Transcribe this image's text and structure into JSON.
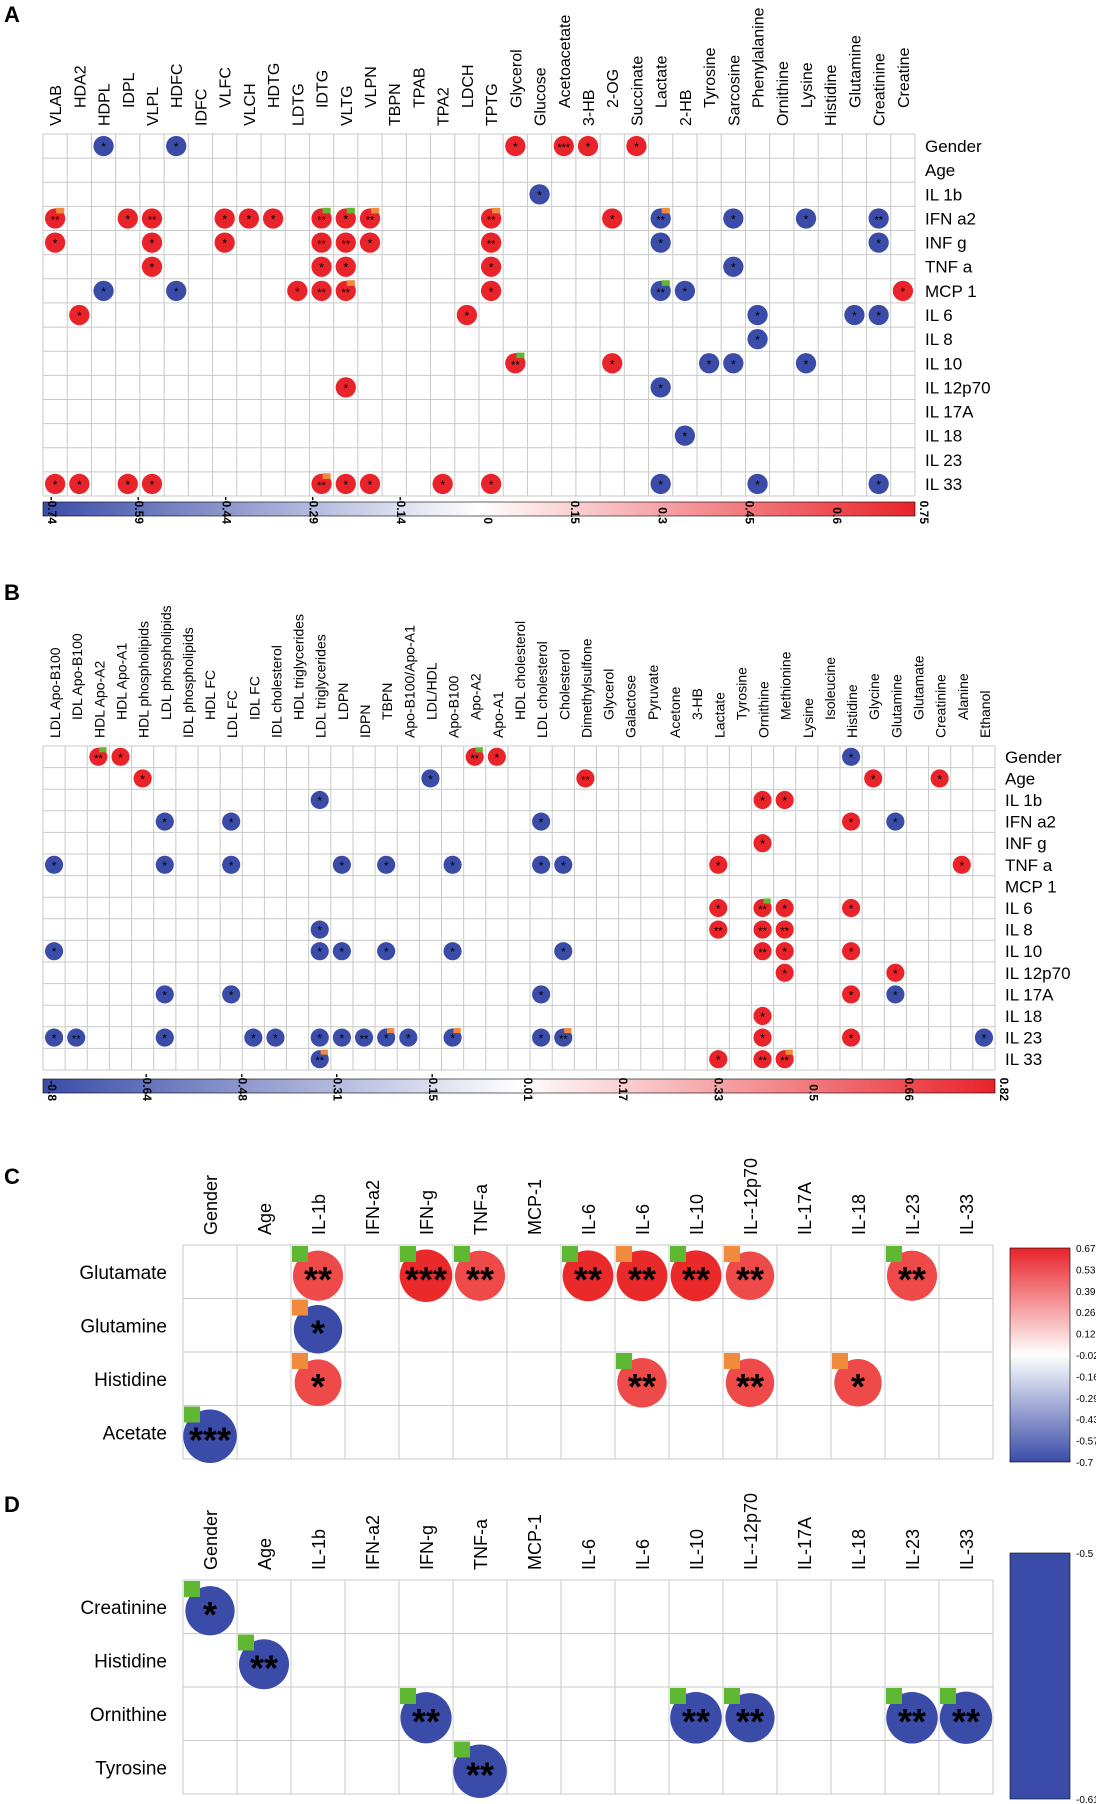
{
  "chart_data": [
    {
      "panel": "A",
      "type": "heatmap",
      "title": "A",
      "columns": [
        "VLAB",
        "HDA2",
        "HDPL",
        "IDPL",
        "VLPL",
        "HDFC",
        "IDFC",
        "VLFC",
        "VLCH",
        "HDTG",
        "LDTG",
        "IDTG",
        "VLTG",
        "VLPN",
        "TBPN",
        "TPAB",
        "TPA2",
        "LDCH",
        "TPTG",
        "Glycerol",
        "Glucose",
        "Acetoacetate",
        "3-HB",
        "2-OG",
        "Succinate",
        "Lactate",
        "2-HB",
        "Tyrosine",
        "Sarcosine",
        "Phenylalanine",
        "Ornithine",
        "Lysine",
        "Histidine",
        "Glutamine",
        "Creatinine",
        "Creatine"
      ],
      "rows": [
        "Gender",
        "Age",
        "IL 1b",
        "IFN a2",
        "INF g",
        "TNF a",
        "MCP 1",
        "IL 6",
        "IL 8",
        "IL 10",
        "IL 12p70",
        "IL 17A",
        "IL 18",
        "IL 23",
        "IL 33"
      ],
      "colorbar": {
        "min": -0.74,
        "max": 0.75,
        "ticks": [
          "-0.74",
          "-0.59",
          "-0.44",
          "-0.29",
          "-0.14",
          "0",
          "0.15",
          "0.3",
          "0.45",
          "0.6",
          "0.75"
        ]
      },
      "cells": [
        [
          0,
          2,
          -0.7,
          "*",
          ""
        ],
        [
          0,
          5,
          -0.7,
          "*",
          ""
        ],
        [
          0,
          19,
          0.7,
          "*",
          ""
        ],
        [
          0,
          21,
          0.7,
          "***",
          ""
        ],
        [
          0,
          22,
          0.7,
          "*",
          ""
        ],
        [
          0,
          24,
          0.7,
          "*",
          ""
        ],
        [
          2,
          20,
          -0.7,
          "*",
          ""
        ],
        [
          3,
          0,
          0.7,
          "**",
          "o"
        ],
        [
          3,
          3,
          0.7,
          "*",
          ""
        ],
        [
          3,
          4,
          0.7,
          "**",
          ""
        ],
        [
          3,
          7,
          0.7,
          "*",
          ""
        ],
        [
          3,
          8,
          0.7,
          "*",
          ""
        ],
        [
          3,
          9,
          0.7,
          "*",
          ""
        ],
        [
          3,
          11,
          0.7,
          "**",
          "g"
        ],
        [
          3,
          12,
          0.7,
          "*",
          "g"
        ],
        [
          3,
          13,
          0.7,
          "**",
          "o"
        ],
        [
          3,
          18,
          0.7,
          "**",
          "o"
        ],
        [
          3,
          23,
          0.7,
          "*",
          ""
        ],
        [
          3,
          25,
          -0.7,
          "**",
          "o"
        ],
        [
          3,
          28,
          -0.7,
          "*",
          ""
        ],
        [
          3,
          31,
          -0.7,
          "*",
          ""
        ],
        [
          3,
          34,
          -0.7,
          "**",
          ""
        ],
        [
          4,
          0,
          0.7,
          "*",
          ""
        ],
        [
          4,
          4,
          0.7,
          "*",
          ""
        ],
        [
          4,
          7,
          0.7,
          "*",
          ""
        ],
        [
          4,
          11,
          0.7,
          "**",
          ""
        ],
        [
          4,
          12,
          0.7,
          "**",
          ""
        ],
        [
          4,
          13,
          0.7,
          "*",
          ""
        ],
        [
          4,
          18,
          0.7,
          "**",
          ""
        ],
        [
          4,
          25,
          -0.7,
          "*",
          ""
        ],
        [
          4,
          34,
          -0.7,
          "*",
          ""
        ],
        [
          5,
          4,
          0.7,
          "*",
          ""
        ],
        [
          5,
          11,
          0.7,
          "*",
          ""
        ],
        [
          5,
          12,
          0.7,
          "*",
          ""
        ],
        [
          5,
          18,
          0.7,
          "*",
          ""
        ],
        [
          5,
          28,
          -0.7,
          "*",
          ""
        ],
        [
          6,
          2,
          -0.7,
          "*",
          ""
        ],
        [
          6,
          5,
          -0.7,
          "*",
          ""
        ],
        [
          6,
          10,
          0.7,
          "*",
          ""
        ],
        [
          6,
          11,
          0.7,
          "**",
          ""
        ],
        [
          6,
          12,
          0.7,
          "**",
          "o"
        ],
        [
          6,
          18,
          0.7,
          "*",
          ""
        ],
        [
          6,
          25,
          -0.7,
          "**",
          "g"
        ],
        [
          6,
          26,
          -0.7,
          "*",
          ""
        ],
        [
          6,
          35,
          0.7,
          "*",
          ""
        ],
        [
          7,
          1,
          0.7,
          "*",
          ""
        ],
        [
          7,
          17,
          0.7,
          "*",
          ""
        ],
        [
          7,
          29,
          -0.7,
          "*",
          ""
        ],
        [
          7,
          33,
          -0.7,
          "*",
          ""
        ],
        [
          7,
          34,
          -0.7,
          "*",
          ""
        ],
        [
          8,
          29,
          -0.7,
          "*",
          ""
        ],
        [
          9,
          19,
          0.7,
          "**",
          "g"
        ],
        [
          9,
          23,
          0.7,
          "*",
          ""
        ],
        [
          9,
          27,
          -0.7,
          "*",
          ""
        ],
        [
          9,
          28,
          -0.7,
          "*",
          ""
        ],
        [
          9,
          31,
          -0.7,
          "*",
          ""
        ],
        [
          10,
          12,
          0.7,
          "*",
          ""
        ],
        [
          10,
          25,
          -0.7,
          "*",
          ""
        ],
        [
          12,
          26,
          -0.7,
          "*",
          ""
        ],
        [
          14,
          0,
          0.7,
          "*",
          ""
        ],
        [
          14,
          1,
          0.7,
          "*",
          ""
        ],
        [
          14,
          3,
          0.7,
          "*",
          ""
        ],
        [
          14,
          4,
          0.7,
          "*",
          ""
        ],
        [
          14,
          11,
          0.7,
          "**",
          "o"
        ],
        [
          14,
          12,
          0.7,
          "*",
          ""
        ],
        [
          14,
          13,
          0.7,
          "*",
          ""
        ],
        [
          14,
          16,
          0.7,
          "*",
          ""
        ],
        [
          14,
          18,
          0.7,
          "*",
          ""
        ],
        [
          14,
          25,
          -0.7,
          "*",
          ""
        ],
        [
          14,
          29,
          -0.7,
          "*",
          ""
        ],
        [
          14,
          34,
          -0.7,
          "*",
          ""
        ]
      ]
    },
    {
      "panel": "B",
      "type": "heatmap",
      "title": "B",
      "columns": [
        "LDL Apo-B100",
        "IDL Apo-B100",
        "HDL Apo-A2",
        "HDL Apo-A1",
        "HDL phospholipids",
        "LDL phospholipids",
        "IDL phospholipids",
        "HDL FC",
        "LDL FC",
        "IDL FC",
        "IDL cholesterol",
        "HDL triglycerides",
        "LDL triglycerides",
        "LDPN",
        "IDPN",
        "TBPN",
        "Apo-B100/Apo-A1",
        "LDL/HDL",
        "Apo-B100",
        "Apo-A2",
        "Apo-A1",
        "HDL cholesterol",
        "LDL cholesterol",
        "Cholesterol",
        "Dimethylsulfone",
        "Glycerol",
        "Galactose",
        "Pyruvate",
        "Acetone",
        "3-HB",
        "Lactate",
        "Tyrosine",
        "Ornithine",
        "Methionine",
        "Lysine",
        "Isoleucine",
        "Histidine",
        "Glycine",
        "Glutamine",
        "Glutamate",
        "Creatinine",
        "Alanine",
        "Ethanol"
      ],
      "rows": [
        "Gender",
        "Age",
        "IL 1b",
        "IFN a2",
        "INF g",
        "TNF a",
        "MCP 1",
        "IL 6",
        "IL 8",
        "IL 10",
        "IL 12p70",
        "IL 17A",
        "IL 18",
        "IL 23",
        "IL 33"
      ],
      "colorbar": {
        "min": -0.8,
        "max": 0.82,
        "ticks": [
          "-0.8",
          "-0.64",
          "-0.48",
          "-0.31",
          "-0.15",
          "0.01",
          "0.17",
          "0.33",
          "0.5",
          "0.66",
          "0.82"
        ]
      },
      "cells": [
        [
          0,
          2,
          0.8,
          "**",
          "g"
        ],
        [
          0,
          3,
          0.8,
          "*",
          ""
        ],
        [
          0,
          19,
          0.8,
          "**",
          "g"
        ],
        [
          0,
          20,
          0.8,
          "*",
          ""
        ],
        [
          0,
          36,
          -0.8,
          "*",
          ""
        ],
        [
          1,
          4,
          0.8,
          "*",
          ""
        ],
        [
          1,
          17,
          -0.8,
          "*",
          ""
        ],
        [
          1,
          24,
          0.8,
          "**",
          ""
        ],
        [
          1,
          37,
          0.8,
          "*",
          ""
        ],
        [
          1,
          40,
          0.8,
          "*",
          ""
        ],
        [
          2,
          12,
          -0.8,
          "*",
          ""
        ],
        [
          2,
          32,
          0.8,
          "*",
          ""
        ],
        [
          2,
          33,
          0.8,
          "*",
          ""
        ],
        [
          3,
          5,
          -0.8,
          "*",
          ""
        ],
        [
          3,
          8,
          -0.8,
          "*",
          ""
        ],
        [
          3,
          22,
          -0.8,
          "*",
          ""
        ],
        [
          3,
          36,
          0.8,
          "*",
          ""
        ],
        [
          3,
          38,
          -0.8,
          "*",
          ""
        ],
        [
          4,
          32,
          0.8,
          "*",
          ""
        ],
        [
          5,
          0,
          -0.8,
          "*",
          ""
        ],
        [
          5,
          5,
          -0.8,
          "*",
          ""
        ],
        [
          5,
          8,
          -0.8,
          "*",
          ""
        ],
        [
          5,
          13,
          -0.8,
          "*",
          ""
        ],
        [
          5,
          15,
          -0.8,
          "*",
          ""
        ],
        [
          5,
          18,
          -0.8,
          "*",
          ""
        ],
        [
          5,
          22,
          -0.8,
          "*",
          ""
        ],
        [
          5,
          23,
          -0.8,
          "*",
          ""
        ],
        [
          5,
          30,
          0.8,
          "*",
          ""
        ],
        [
          5,
          41,
          0.8,
          "*",
          ""
        ],
        [
          7,
          30,
          0.8,
          "*",
          ""
        ],
        [
          7,
          32,
          0.8,
          "**",
          "g"
        ],
        [
          7,
          33,
          0.8,
          "*",
          ""
        ],
        [
          7,
          36,
          0.8,
          "*",
          ""
        ],
        [
          8,
          12,
          -0.8,
          "*",
          ""
        ],
        [
          8,
          30,
          0.8,
          "**",
          ""
        ],
        [
          8,
          32,
          0.8,
          "**",
          ""
        ],
        [
          8,
          33,
          0.8,
          "**",
          ""
        ],
        [
          9,
          0,
          -0.8,
          "*",
          ""
        ],
        [
          9,
          12,
          -0.8,
          "*",
          ""
        ],
        [
          9,
          13,
          -0.8,
          "*",
          ""
        ],
        [
          9,
          15,
          -0.8,
          "*",
          ""
        ],
        [
          9,
          18,
          -0.8,
          "*",
          ""
        ],
        [
          9,
          23,
          -0.8,
          "*",
          ""
        ],
        [
          9,
          32,
          0.8,
          "**",
          ""
        ],
        [
          9,
          33,
          0.8,
          "*",
          ""
        ],
        [
          9,
          36,
          0.8,
          "*",
          ""
        ],
        [
          10,
          33,
          0.8,
          "*",
          ""
        ],
        [
          10,
          38,
          0.8,
          "*",
          ""
        ],
        [
          11,
          5,
          -0.8,
          "*",
          ""
        ],
        [
          11,
          8,
          -0.8,
          "*",
          ""
        ],
        [
          11,
          22,
          -0.8,
          "*",
          ""
        ],
        [
          11,
          36,
          0.8,
          "*",
          ""
        ],
        [
          11,
          38,
          -0.8,
          "*",
          ""
        ],
        [
          12,
          32,
          0.8,
          "*",
          ""
        ],
        [
          13,
          0,
          -0.8,
          "*",
          ""
        ],
        [
          13,
          1,
          -0.8,
          "**",
          ""
        ],
        [
          13,
          5,
          -0.8,
          "*",
          ""
        ],
        [
          13,
          9,
          -0.8,
          "*",
          ""
        ],
        [
          13,
          10,
          -0.8,
          "*",
          ""
        ],
        [
          13,
          12,
          -0.8,
          "*",
          ""
        ],
        [
          13,
          13,
          -0.8,
          "*",
          ""
        ],
        [
          13,
          14,
          -0.8,
          "**",
          ""
        ],
        [
          13,
          15,
          -0.8,
          "*",
          "o"
        ],
        [
          13,
          16,
          -0.8,
          "*",
          ""
        ],
        [
          13,
          18,
          -0.8,
          "*",
          "o"
        ],
        [
          13,
          22,
          -0.8,
          "*",
          ""
        ],
        [
          13,
          23,
          -0.8,
          "**",
          "o"
        ],
        [
          13,
          32,
          0.8,
          "*",
          ""
        ],
        [
          13,
          36,
          0.8,
          "*",
          ""
        ],
        [
          13,
          42,
          -0.8,
          "*",
          ""
        ],
        [
          14,
          12,
          -0.8,
          "**",
          "o"
        ],
        [
          14,
          30,
          0.8,
          "*",
          ""
        ],
        [
          14,
          32,
          0.8,
          "**",
          ""
        ],
        [
          14,
          33,
          0.8,
          "**",
          "o"
        ]
      ]
    },
    {
      "panel": "C",
      "type": "heatmap",
      "title": "C",
      "columns": [
        "Gender",
        "Age",
        "IL-1b",
        "IFN-a2",
        "IFN-g",
        "TNF-a",
        "MCP-1",
        "IL-6",
        "IL-6",
        "IL-10",
        "IL--12p70",
        "IL-17A",
        "IL-18",
        "IL-23",
        "IL-33"
      ],
      "rows": [
        "Glutamate",
        "Glutamine",
        "Histidine",
        "Acetate"
      ],
      "colorbar": {
        "min": -0.7,
        "max": 0.67,
        "ticks": [
          "0.67",
          "0.53",
          "0.39",
          "0.26",
          "0.12",
          "-0.02",
          "-0.16",
          "-0.29",
          "-0.43",
          "-0.57",
          "-0.7"
        ]
      },
      "cells": [
        [
          0,
          2,
          0.6,
          "**",
          "g"
        ],
        [
          0,
          4,
          0.67,
          "***",
          "g"
        ],
        [
          0,
          5,
          0.6,
          "**",
          "g"
        ],
        [
          0,
          7,
          0.62,
          "**",
          "g"
        ],
        [
          0,
          8,
          0.62,
          "**",
          "o"
        ],
        [
          0,
          9,
          0.62,
          "**",
          "g"
        ],
        [
          0,
          10,
          0.55,
          "**",
          "o"
        ],
        [
          0,
          13,
          0.6,
          "**",
          "g"
        ],
        [
          1,
          2,
          -0.55,
          "*",
          "o"
        ],
        [
          2,
          2,
          0.5,
          "*",
          "o"
        ],
        [
          2,
          8,
          0.58,
          "**",
          "g"
        ],
        [
          2,
          10,
          0.55,
          "**",
          "o"
        ],
        [
          2,
          12,
          0.52,
          "*",
          "o"
        ],
        [
          3,
          0,
          -0.7,
          "***",
          "g"
        ]
      ]
    },
    {
      "panel": "D",
      "type": "heatmap",
      "title": "D",
      "columns": [
        "Gender",
        "Age",
        "IL-1b",
        "IFN-a2",
        "IFN-g",
        "TNF-a",
        "MCP-1",
        "IL-6",
        "IL-6",
        "IL-10",
        "IL--12p70",
        "IL-17A",
        "IL-18",
        "IL-23",
        "IL-33"
      ],
      "rows": [
        "Creatinine",
        "Histidine",
        "Ornithine",
        "Tyrosine"
      ],
      "colorbar": {
        "min": -0.61,
        "max": -0.5,
        "ticks": [
          "-0.5",
          "-0.61"
        ]
      },
      "cells": [
        [
          0,
          0,
          -0.5,
          "*",
          "g"
        ],
        [
          1,
          1,
          -0.52,
          "**",
          "g"
        ],
        [
          2,
          4,
          -0.55,
          "**",
          "g"
        ],
        [
          2,
          9,
          -0.56,
          "**",
          "g"
        ],
        [
          2,
          10,
          -0.5,
          "**",
          "g"
        ],
        [
          2,
          13,
          -0.56,
          "**",
          "g"
        ],
        [
          2,
          14,
          -0.58,
          "**",
          "g"
        ],
        [
          3,
          5,
          -0.61,
          "**",
          "g"
        ]
      ]
    }
  ]
}
